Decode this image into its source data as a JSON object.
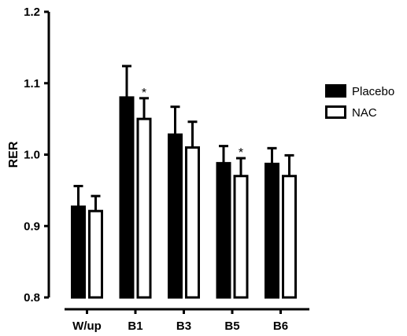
{
  "chart_data": {
    "type": "bar",
    "categories": [
      "W/up",
      "B1",
      "B3",
      "B5",
      "B6"
    ],
    "series": [
      {
        "name": "Placebo",
        "values": [
          0.927,
          1.08,
          1.028,
          0.988,
          0.987
        ],
        "errors": [
          0.029,
          0.044,
          0.039,
          0.024,
          0.022
        ],
        "color": "#000000"
      },
      {
        "name": "NAC",
        "values": [
          0.921,
          1.05,
          1.01,
          0.97,
          0.97
        ],
        "errors": [
          0.021,
          0.029,
          0.036,
          0.025,
          0.029
        ],
        "color": "#ffffff"
      }
    ],
    "ylabel": "RER",
    "xlabel": "",
    "ylim": [
      0.8,
      1.2
    ],
    "yticks": [
      "0.8",
      "0.9",
      "1.0",
      "1.1",
      "1.2"
    ],
    "annotations": [
      {
        "category": "B1",
        "series": "NAC",
        "text": "*"
      },
      {
        "category": "B5",
        "series": "NAC",
        "text": "*"
      }
    ],
    "legend_position": "right",
    "grid": false
  }
}
